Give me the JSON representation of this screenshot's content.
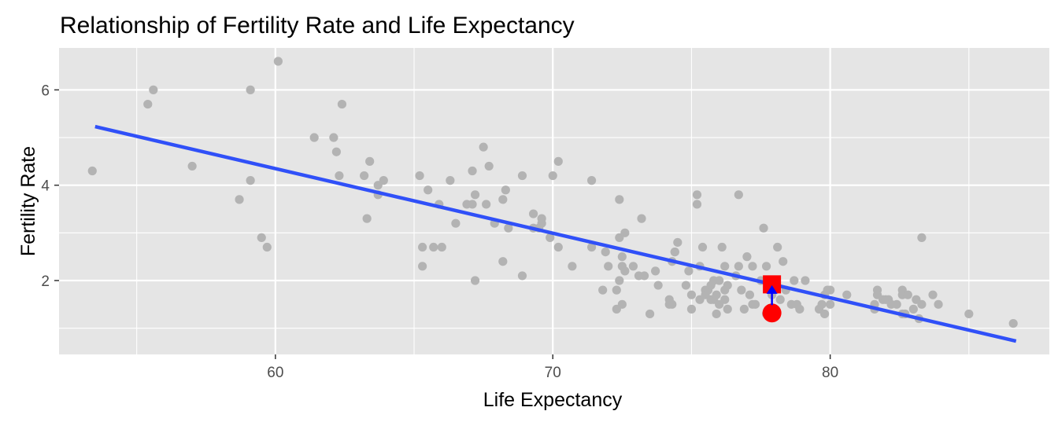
{
  "chart_data": {
    "type": "scatter",
    "title": "Relationship of Fertility Rate and Life Expectancy",
    "xlabel": "Life Expectancy",
    "ylabel": "Fertility Rate",
    "xlim": [
      52.2,
      87.9
    ],
    "ylim": [
      0.45,
      6.88
    ],
    "xticks": [
      60,
      70,
      80
    ],
    "yticks": [
      2,
      4,
      6
    ],
    "xticks_minor": [
      55,
      65,
      75,
      85
    ],
    "yticks_minor": [
      1,
      3,
      5
    ],
    "grid": true,
    "legend": "none",
    "colors": {
      "panel": "#e5e5e5",
      "grid": "#ffffff",
      "points": "#b3b3b3",
      "trend": "#3050f8",
      "observed": "#ff0000",
      "predicted": "#ff0000",
      "residual_arrow": "#0000ff"
    },
    "trend_line": {
      "x": [
        53.5,
        86.7
      ],
      "y": [
        5.23,
        0.73
      ]
    },
    "highlight": {
      "observed": {
        "x": 77.9,
        "y": 1.32,
        "shape": "circle"
      },
      "predicted": {
        "x": 77.9,
        "y": 1.92,
        "shape": "square"
      }
    },
    "points": [
      [
        53.4,
        4.3
      ],
      [
        55.4,
        5.7
      ],
      [
        55.6,
        6.0
      ],
      [
        57.0,
        4.4
      ],
      [
        58.7,
        3.7
      ],
      [
        59.1,
        6.0
      ],
      [
        59.1,
        4.1
      ],
      [
        59.5,
        2.9
      ],
      [
        59.7,
        2.7
      ],
      [
        60.1,
        6.6
      ],
      [
        61.4,
        5.0
      ],
      [
        62.1,
        5.0
      ],
      [
        62.2,
        4.7
      ],
      [
        62.3,
        4.2
      ],
      [
        62.4,
        5.7
      ],
      [
        63.2,
        4.2
      ],
      [
        63.3,
        3.3
      ],
      [
        63.4,
        4.5
      ],
      [
        63.7,
        3.8
      ],
      [
        63.7,
        4.0
      ],
      [
        63.9,
        4.1
      ],
      [
        65.2,
        4.2
      ],
      [
        65.3,
        2.7
      ],
      [
        65.3,
        2.3
      ],
      [
        65.5,
        3.9
      ],
      [
        65.7,
        2.7
      ],
      [
        65.9,
        3.6
      ],
      [
        66.0,
        2.7
      ],
      [
        66.3,
        4.1
      ],
      [
        66.5,
        3.2
      ],
      [
        66.9,
        3.6
      ],
      [
        67.1,
        3.6
      ],
      [
        67.1,
        4.3
      ],
      [
        67.2,
        3.8
      ],
      [
        67.2,
        2.0
      ],
      [
        67.5,
        4.8
      ],
      [
        67.6,
        3.6
      ],
      [
        67.7,
        4.4
      ],
      [
        67.9,
        3.2
      ],
      [
        68.2,
        3.7
      ],
      [
        68.2,
        2.4
      ],
      [
        68.3,
        3.9
      ],
      [
        68.4,
        3.1
      ],
      [
        68.9,
        4.2
      ],
      [
        68.9,
        2.1
      ],
      [
        69.3,
        3.4
      ],
      [
        69.3,
        3.1
      ],
      [
        69.5,
        3.1
      ],
      [
        69.6,
        3.3
      ],
      [
        69.6,
        3.2
      ],
      [
        69.9,
        2.9
      ],
      [
        70.0,
        4.2
      ],
      [
        70.2,
        4.5
      ],
      [
        70.2,
        2.7
      ],
      [
        70.7,
        2.3
      ],
      [
        71.4,
        4.1
      ],
      [
        71.4,
        2.7
      ],
      [
        71.8,
        1.8
      ],
      [
        71.9,
        2.6
      ],
      [
        72.0,
        2.3
      ],
      [
        72.3,
        1.4
      ],
      [
        72.3,
        1.8
      ],
      [
        72.4,
        2.9
      ],
      [
        72.4,
        2.0
      ],
      [
        72.4,
        3.7
      ],
      [
        72.5,
        1.5
      ],
      [
        72.5,
        2.3
      ],
      [
        72.5,
        2.5
      ],
      [
        72.6,
        3.0
      ],
      [
        72.6,
        2.2
      ],
      [
        72.9,
        2.3
      ],
      [
        73.1,
        2.1
      ],
      [
        73.2,
        3.3
      ],
      [
        73.3,
        2.1
      ],
      [
        73.5,
        1.3
      ],
      [
        73.7,
        2.2
      ],
      [
        73.8,
        1.9
      ],
      [
        74.2,
        1.6
      ],
      [
        74.2,
        1.5
      ],
      [
        74.3,
        2.4
      ],
      [
        74.3,
        1.5
      ],
      [
        74.4,
        2.6
      ],
      [
        74.5,
        2.8
      ],
      [
        74.4,
        2.6
      ],
      [
        74.8,
        1.9
      ],
      [
        74.9,
        2.2
      ],
      [
        75.0,
        1.7
      ],
      [
        75.0,
        1.4
      ],
      [
        75.2,
        3.8
      ],
      [
        75.2,
        3.6
      ],
      [
        75.3,
        2.3
      ],
      [
        75.3,
        1.6
      ],
      [
        75.4,
        2.7
      ],
      [
        75.5,
        1.8
      ],
      [
        75.5,
        1.7
      ],
      [
        75.6,
        1.8
      ],
      [
        75.7,
        1.9
      ],
      [
        75.7,
        1.6
      ],
      [
        75.8,
        2.0
      ],
      [
        75.8,
        1.6
      ],
      [
        75.9,
        1.7
      ],
      [
        75.9,
        1.3
      ],
      [
        76.0,
        2.0
      ],
      [
        76.0,
        1.5
      ],
      [
        76.1,
        2.7
      ],
      [
        76.2,
        2.3
      ],
      [
        76.2,
        1.6
      ],
      [
        76.2,
        1.8
      ],
      [
        76.3,
        1.4
      ],
      [
        76.3,
        1.9
      ],
      [
        76.6,
        2.1
      ],
      [
        76.7,
        2.3
      ],
      [
        76.7,
        3.8
      ],
      [
        76.8,
        1.8
      ],
      [
        76.9,
        1.4
      ],
      [
        77.0,
        2.5
      ],
      [
        77.1,
        1.7
      ],
      [
        77.2,
        1.5
      ],
      [
        77.2,
        2.3
      ],
      [
        77.3,
        1.5
      ],
      [
        77.5,
        2.0
      ],
      [
        77.6,
        3.1
      ],
      [
        77.7,
        1.3
      ],
      [
        77.7,
        2.3
      ],
      [
        77.8,
        1.9
      ],
      [
        77.9,
        1.7
      ],
      [
        77.9,
        1.8
      ],
      [
        78.0,
        2.0
      ],
      [
        78.1,
        2.7
      ],
      [
        78.2,
        1.6
      ],
      [
        78.3,
        2.4
      ],
      [
        78.4,
        1.8
      ],
      [
        78.6,
        1.5
      ],
      [
        78.7,
        2.0
      ],
      [
        78.8,
        1.5
      ],
      [
        78.9,
        1.4
      ],
      [
        79.1,
        2.0
      ],
      [
        79.6,
        1.4
      ],
      [
        79.7,
        1.5
      ],
      [
        79.8,
        1.3
      ],
      [
        79.8,
        1.7
      ],
      [
        79.9,
        1.8
      ],
      [
        80.0,
        1.5
      ],
      [
        80.0,
        1.8
      ],
      [
        80.6,
        1.7
      ],
      [
        81.6,
        1.4
      ],
      [
        81.6,
        1.5
      ],
      [
        81.7,
        1.8
      ],
      [
        81.7,
        1.7
      ],
      [
        81.9,
        1.6
      ],
      [
        82.0,
        1.6
      ],
      [
        82.1,
        1.6
      ],
      [
        82.2,
        1.5
      ],
      [
        82.4,
        1.5
      ],
      [
        82.6,
        1.7
      ],
      [
        82.6,
        1.3
      ],
      [
        82.6,
        1.8
      ],
      [
        82.7,
        1.3
      ],
      [
        82.8,
        1.7
      ],
      [
        83.0,
        1.4
      ],
      [
        83.1,
        1.6
      ],
      [
        83.2,
        1.2
      ],
      [
        83.3,
        1.5
      ],
      [
        83.3,
        2.9
      ],
      [
        83.7,
        1.7
      ],
      [
        83.9,
        1.5
      ],
      [
        85.0,
        1.3
      ],
      [
        86.6,
        1.1
      ]
    ]
  }
}
